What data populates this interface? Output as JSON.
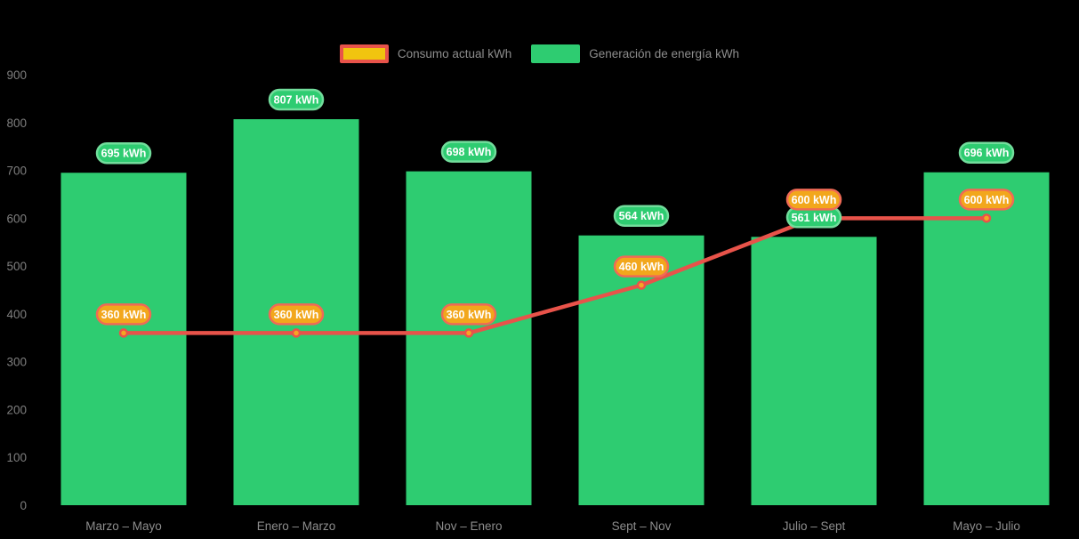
{
  "colors": {
    "background": "#000000",
    "bar_green": "#2ecc71",
    "bar_pill_border": "#72dd9c",
    "line_red": "#e8534a",
    "marker_orange": "#f5a623",
    "line_pill_fill": "#f2a71c",
    "line_pill_border": "#ef6a56",
    "legend_yellow": "#f1c40f",
    "legend_red_border": "#e8534a",
    "axis_text": "#7f7f7f",
    "category_text": "#8d8d8d"
  },
  "legend": {
    "items": [
      {
        "id": "consumo",
        "label": "Consumo actual kWh",
        "swatch": "line-marker",
        "fill": "#f1c40f",
        "border": "#e8534a"
      },
      {
        "id": "generacion",
        "label": "Generación de energía kWh",
        "swatch": "bar",
        "fill": "#2ecc71",
        "border": ""
      }
    ]
  },
  "chart_data": {
    "type": "bar+line combo",
    "categories": [
      "Marzo – Mayo",
      "Enero – Marzo",
      "Nov – Enero",
      "Sept – Nov",
      "Julio – Sept",
      "Mayo – Julio"
    ],
    "series": [
      {
        "name": "Generación de energía kWh",
        "type": "bar",
        "color": "#2ecc71",
        "values": [
          695,
          807,
          698,
          564,
          561,
          696
        ],
        "labels": [
          "695 kWh",
          "807 kWh",
          "698 kWh",
          "564 kWh",
          "561 kWh",
          "696 kWh"
        ]
      },
      {
        "name": "Consumo actual kWh",
        "type": "line",
        "color": "#e8534a",
        "marker_fill": "#f5a623",
        "values": [
          360,
          360,
          360,
          460,
          600,
          600
        ],
        "labels": [
          "360 kWh",
          "360 kWh",
          "360 kWh",
          "460 kWh",
          "600 kWh",
          "600 kWh"
        ]
      }
    ],
    "label_suffix": " kWh",
    "title": "",
    "xlabel": "",
    "ylabel": "",
    "ylim": [
      0,
      900
    ],
    "y_ticks": [
      0,
      100,
      200,
      300,
      400,
      500,
      600,
      700,
      800,
      900
    ],
    "grid": false,
    "legend_position": "top"
  }
}
